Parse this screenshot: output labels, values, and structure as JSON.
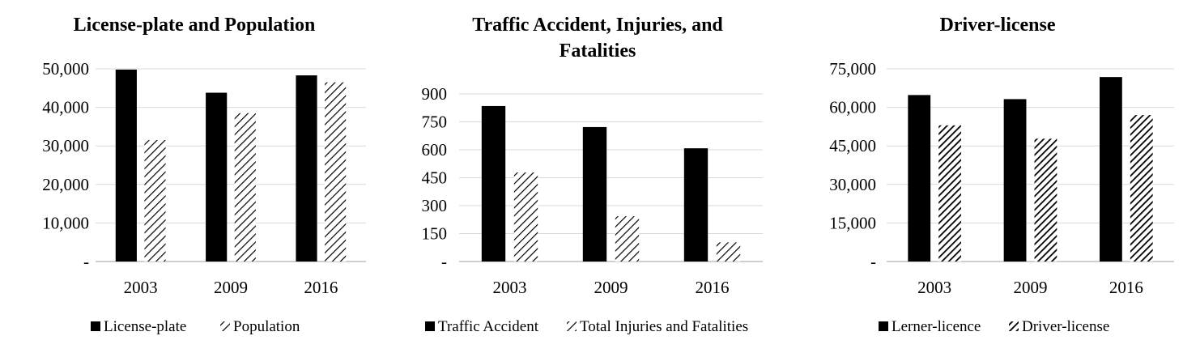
{
  "chart_data": [
    {
      "type": "bar",
      "title_lines": [
        "License-plate and Population"
      ],
      "categories": [
        "2003",
        "2009",
        "2016"
      ],
      "series": [
        {
          "name": "License-plate",
          "values": [
            49800,
            43800,
            48300
          ],
          "pattern": "solid"
        },
        {
          "name": "Population",
          "values": [
            31500,
            38500,
            46500
          ],
          "pattern": "hatch-light"
        }
      ],
      "ylim": [
        0,
        50000
      ],
      "yticks": [
        0,
        10000,
        20000,
        30000,
        40000,
        50000
      ],
      "ytick_labels": [
        "-",
        "10,000",
        "20,000",
        "30,000",
        "40,000",
        "50,000"
      ],
      "xlabel": "",
      "ylabel": "",
      "grid": true,
      "legend_position": "bottom"
    },
    {
      "type": "bar",
      "title_lines": [
        "Traffic Accident, Injuries, and",
        "Fatalities"
      ],
      "categories": [
        "2003",
        "2009",
        "2016"
      ],
      "series": [
        {
          "name": "Traffic Accident",
          "values": [
            835,
            722,
            608
          ],
          "pattern": "solid"
        },
        {
          "name": "Total Injuries and Fatalities",
          "values": [
            478,
            243,
            103
          ],
          "pattern": "hatch-light"
        }
      ],
      "ylim": [
        0,
        900
      ],
      "yticks": [
        0,
        150,
        300,
        450,
        600,
        750,
        900
      ],
      "ytick_labels": [
        "-",
        "150",
        "300",
        "450",
        "600",
        "750",
        "900"
      ],
      "xlabel": "",
      "ylabel": "",
      "grid": true,
      "legend_position": "bottom"
    },
    {
      "type": "bar",
      "title_lines": [
        "Driver-license"
      ],
      "categories": [
        "2003",
        "2009",
        "2016"
      ],
      "series": [
        {
          "name": "Lerner-licence",
          "values": [
            64800,
            63200,
            71800
          ],
          "pattern": "solid"
        },
        {
          "name": "Driver-license",
          "values": [
            53000,
            47800,
            57000
          ],
          "pattern": "hatch-dense"
        }
      ],
      "ylim": [
        0,
        75000
      ],
      "yticks": [
        0,
        15000,
        30000,
        45000,
        60000,
        75000
      ],
      "ytick_labels": [
        "-",
        "15,000",
        "30,000",
        "45,000",
        "60,000",
        "75,000"
      ],
      "xlabel": "",
      "ylabel": "",
      "grid": true,
      "legend_position": "bottom"
    }
  ],
  "colors": {
    "bar_solid": "#000000",
    "gridline": "#d9d9d9",
    "axis": "#bfbfbf",
    "text": "#000000",
    "background": "#ffffff"
  }
}
